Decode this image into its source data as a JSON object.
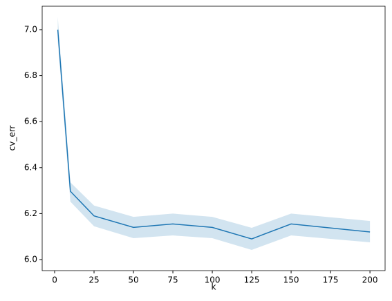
{
  "chart_data": {
    "type": "line",
    "xlabel": "k",
    "ylabel": "cv_err",
    "x": [
      2,
      10,
      25,
      50,
      75,
      100,
      125,
      150,
      200
    ],
    "series": [
      {
        "color": "#1f77b4",
        "values": [
          7.0,
          6.297,
          6.19,
          6.14,
          6.155,
          6.14,
          6.09,
          6.155,
          6.12
        ],
        "lower": [
          6.95,
          6.252,
          6.145,
          6.093,
          6.105,
          6.093,
          6.042,
          6.105,
          6.075
        ],
        "upper": [
          7.055,
          6.336,
          6.235,
          6.186,
          6.2,
          6.186,
          6.138,
          6.2,
          6.168
        ]
      }
    ],
    "xlim": [
      -7.9,
      209.6
    ],
    "xticks": [
      0,
      25,
      50,
      75,
      100,
      125,
      150,
      175,
      200
    ],
    "ylim": [
      5.952,
      7.102
    ],
    "yticks": [
      {
        "value": 6,
        "label": "6.0"
      },
      6.2,
      6.4,
      6.6,
      6.8,
      {
        "value": 7,
        "label": "7.0"
      }
    ]
  }
}
